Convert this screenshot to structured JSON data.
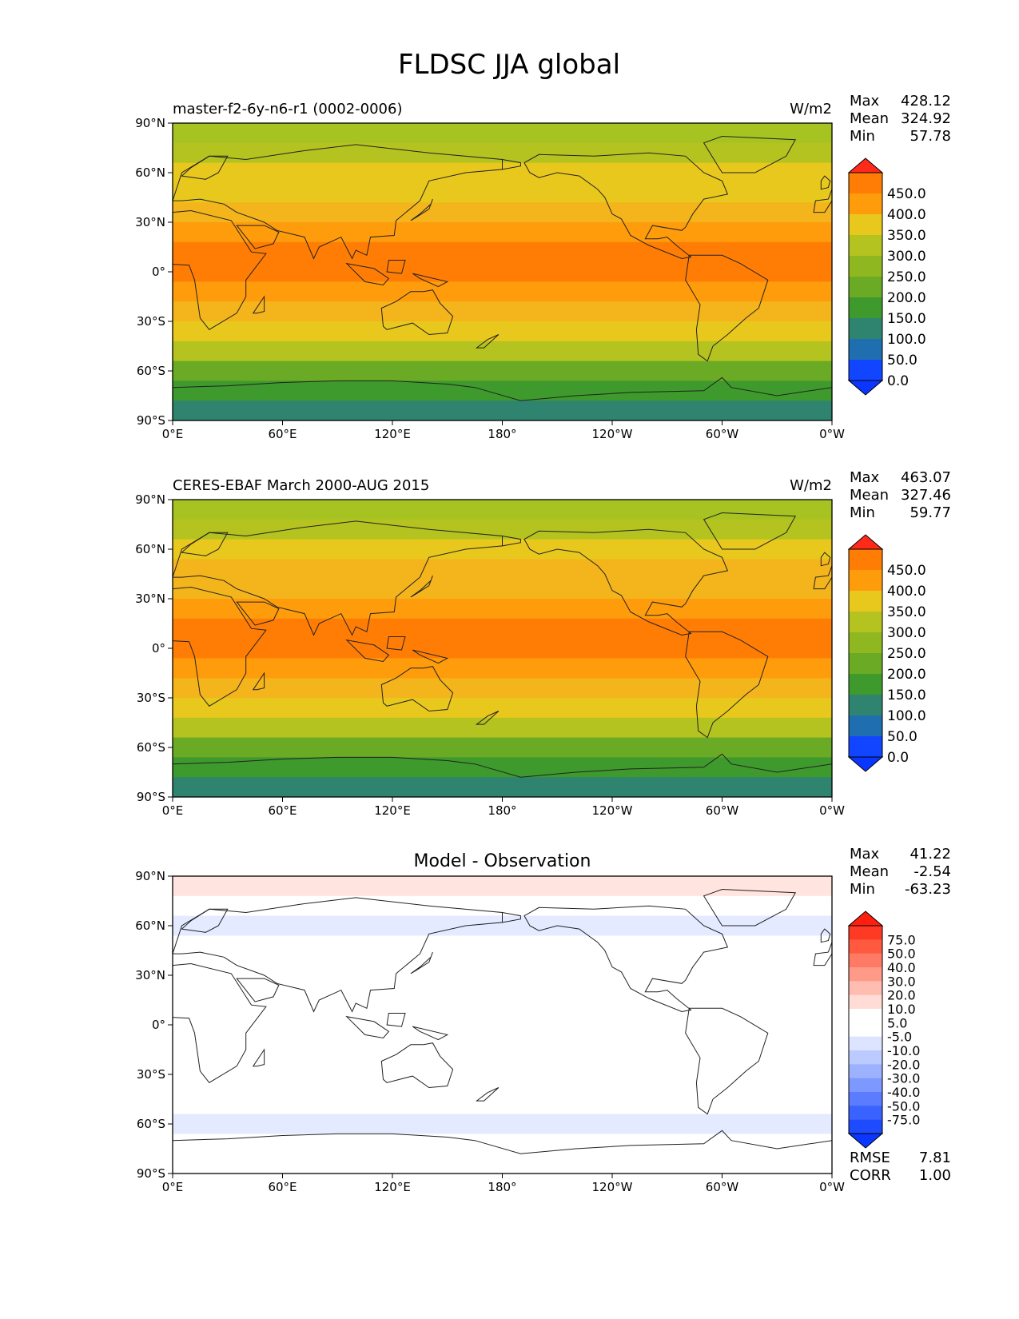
{
  "figure": {
    "title": "FLDSC JJA global",
    "lat_ticks": [
      "90°N",
      "60°N",
      "30°N",
      "0°",
      "30°S",
      "60°S",
      "90°S"
    ],
    "lon_ticks": [
      "0°E",
      "60°E",
      "120°E",
      "180°",
      "120°W",
      "60°W",
      "0°W"
    ]
  },
  "panels": [
    {
      "id": "model",
      "left_title": "master-f2-6y-n6-r1 (0002-0006)",
      "center_title": "",
      "units": "W/m2",
      "stats": [
        {
          "label": "Max",
          "value": "428.12"
        },
        {
          "label": "Mean",
          "value": "324.92"
        },
        {
          "label": "Min",
          "value": "57.78"
        }
      ],
      "colorbar": {
        "labels": [
          "450.0",
          "400.0",
          "350.0",
          "300.0",
          "250.0",
          "200.0",
          "150.0",
          "100.0",
          "50.0",
          "0.0"
        ],
        "colors": [
          "#ff7d05",
          "#ff9c0c",
          "#e9c81e",
          "#b4c31f",
          "#8fb820",
          "#6aaa24",
          "#3e9a2c",
          "#2f8470",
          "#1f6fb0",
          "#1145ff"
        ],
        "over_color": "#ff2a1a",
        "under_color": "#0a36ff"
      },
      "zonal_colors": [
        "#a7c322",
        "#b4c31f",
        "#e9c81e",
        "#e9c81e",
        "#f4b41c",
        "#ff9c0c",
        "#ff7d05",
        "#ff7d05",
        "#ff9c0c",
        "#f4b41c",
        "#e9c81e",
        "#b4c31f",
        "#6aaa24",
        "#3e9a2c",
        "#2f8470"
      ]
    },
    {
      "id": "obs",
      "left_title": "CERES-EBAF March 2000-AUG 2015",
      "center_title": "",
      "units": "W/m2",
      "stats": [
        {
          "label": "Max",
          "value": "463.07"
        },
        {
          "label": "Mean",
          "value": "327.46"
        },
        {
          "label": "Min",
          "value": "59.77"
        }
      ],
      "colorbar": {
        "labels": [
          "450.0",
          "400.0",
          "350.0",
          "300.0",
          "250.0",
          "200.0",
          "150.0",
          "100.0",
          "50.0",
          "0.0"
        ],
        "colors": [
          "#ff7d05",
          "#ff9c0c",
          "#e9c81e",
          "#b4c31f",
          "#8fb820",
          "#6aaa24",
          "#3e9a2c",
          "#2f8470",
          "#1f6fb0",
          "#1145ff"
        ],
        "over_color": "#ff2a1a",
        "under_color": "#0a36ff"
      },
      "zonal_colors": [
        "#a7c322",
        "#b4c31f",
        "#e9c81e",
        "#f4b41c",
        "#f4b41c",
        "#ff9c0c",
        "#ff7d05",
        "#ff7d05",
        "#ff9c0c",
        "#f4b41c",
        "#e9c81e",
        "#b4c31f",
        "#6aaa24",
        "#3e9a2c",
        "#2f8470"
      ]
    },
    {
      "id": "diff",
      "left_title": "",
      "center_title": "Model - Observation",
      "units": "",
      "stats": [
        {
          "label": "Max",
          "value": "41.22"
        },
        {
          "label": "Mean",
          "value": "-2.54"
        },
        {
          "label": "Min",
          "value": "-63.23"
        }
      ],
      "extra_stats": [
        {
          "label": "RMSE",
          "value": "7.81"
        },
        {
          "label": "CORR",
          "value": "1.00"
        }
      ],
      "colorbar": {
        "labels": [
          "75.0",
          "50.0",
          "40.0",
          "30.0",
          "20.0",
          "10.0",
          "5.0",
          "-5.0",
          "-10.0",
          "-20.0",
          "-30.0",
          "-40.0",
          "-50.0",
          "-75.0"
        ],
        "colors": [
          "#ff3a24",
          "#ff5a40",
          "#ff7a64",
          "#ff9a88",
          "#ffbcb0",
          "#ffdcd6",
          "#ffffff",
          "#ffffff",
          "#dce4ff",
          "#bccbff",
          "#9db2ff",
          "#7d98ff",
          "#5b7cff",
          "#3a62ff",
          "#1f4bff"
        ],
        "over_color": "#ff1f0f",
        "under_color": "#0a36ff"
      },
      "zonal_colors": [
        "#ffe4e0",
        "#ffffff",
        "#e4eaff",
        "#ffffff",
        "#ffffff",
        "#ffffff",
        "#ffffff",
        "#ffffff",
        "#ffffff",
        "#ffffff",
        "#ffffff",
        "#ffffff",
        "#e4eaff",
        "#ffffff",
        "#ffffff"
      ]
    }
  ]
}
